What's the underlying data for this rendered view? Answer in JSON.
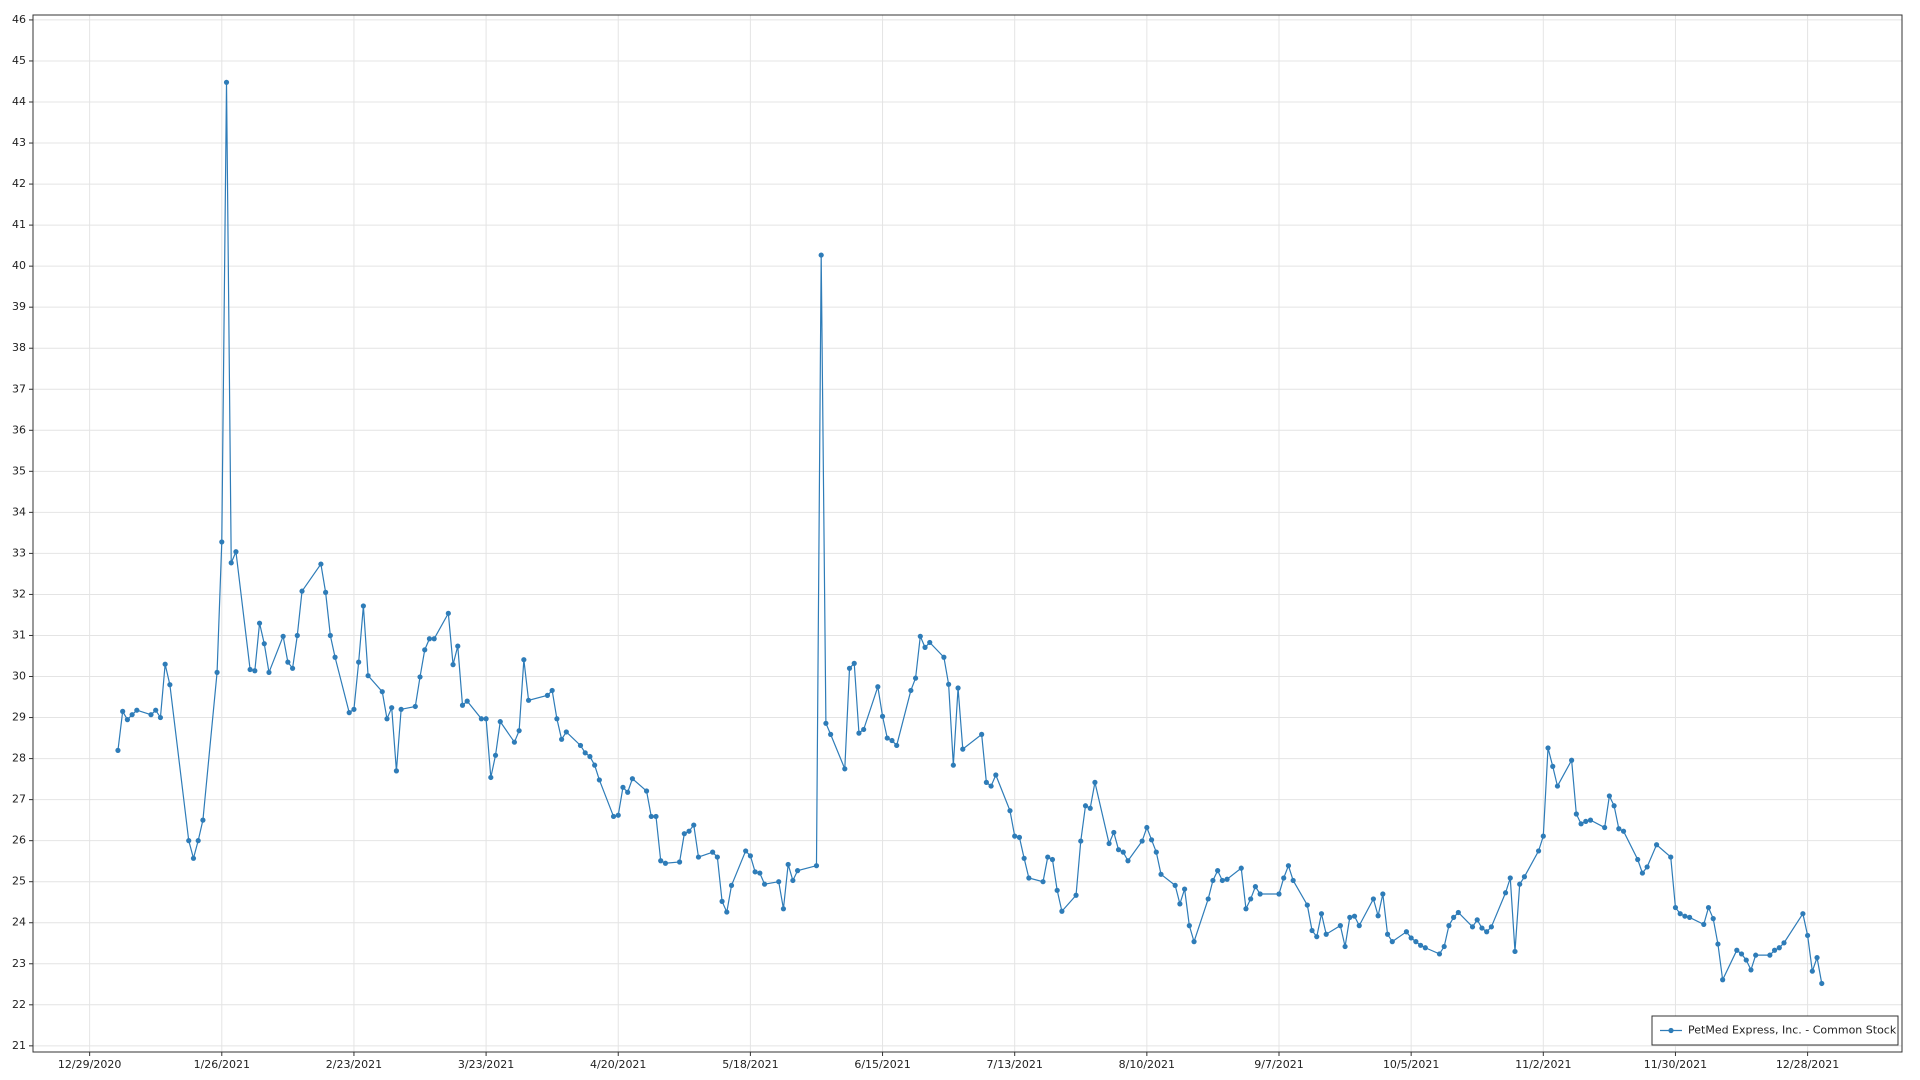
{
  "chart_data": {
    "type": "line",
    "x": [
      "1/4/2021",
      "1/5/2021",
      "1/6/2021",
      "1/7/2021",
      "1/8/2021",
      "1/11/2021",
      "1/12/2021",
      "1/13/2021",
      "1/14/2021",
      "1/15/2021",
      "1/19/2021",
      "1/20/2021",
      "1/21/2021",
      "1/22/2021",
      "1/25/2021",
      "1/26/2021",
      "1/27/2021",
      "1/28/2021",
      "1/29/2021",
      "2/1/2021",
      "2/2/2021",
      "2/3/2021",
      "2/4/2021",
      "2/5/2021",
      "2/8/2021",
      "2/9/2021",
      "2/10/2021",
      "2/11/2021",
      "2/12/2021",
      "2/16/2021",
      "2/17/2021",
      "2/18/2021",
      "2/19/2021",
      "2/22/2021",
      "2/23/2021",
      "2/24/2021",
      "2/25/2021",
      "2/26/2021",
      "3/1/2021",
      "3/2/2021",
      "3/3/2021",
      "3/4/2021",
      "3/5/2021",
      "3/8/2021",
      "3/9/2021",
      "3/10/2021",
      "3/11/2021",
      "3/12/2021",
      "3/15/2021",
      "3/16/2021",
      "3/17/2021",
      "3/18/2021",
      "3/19/2021",
      "3/22/2021",
      "3/23/2021",
      "3/24/2021",
      "3/25/2021",
      "3/26/2021",
      "3/29/2021",
      "3/30/2021",
      "3/31/2021",
      "4/1/2021",
      "4/5/2021",
      "4/6/2021",
      "4/7/2021",
      "4/8/2021",
      "4/9/2021",
      "4/12/2021",
      "4/13/2021",
      "4/14/2021",
      "4/15/2021",
      "4/16/2021",
      "4/19/2021",
      "4/20/2021",
      "4/21/2021",
      "4/22/2021",
      "4/23/2021",
      "4/26/2021",
      "4/27/2021",
      "4/28/2021",
      "4/29/2021",
      "4/30/2021",
      "5/3/2021",
      "5/4/2021",
      "5/5/2021",
      "5/6/2021",
      "5/7/2021",
      "5/10/2021",
      "5/11/2021",
      "5/12/2021",
      "5/13/2021",
      "5/14/2021",
      "5/17/2021",
      "5/18/2021",
      "5/19/2021",
      "5/20/2021",
      "5/21/2021",
      "5/24/2021",
      "5/25/2021",
      "5/26/2021",
      "5/27/2021",
      "5/28/2021",
      "6/1/2021",
      "6/2/2021",
      "6/3/2021",
      "6/4/2021",
      "6/7/2021",
      "6/8/2021",
      "6/9/2021",
      "6/10/2021",
      "6/11/2021",
      "6/14/2021",
      "6/15/2021",
      "6/16/2021",
      "6/17/2021",
      "6/18/2021",
      "6/21/2021",
      "6/22/2021",
      "6/23/2021",
      "6/24/2021",
      "6/25/2021",
      "6/28/2021",
      "6/29/2021",
      "6/30/2021",
      "7/1/2021",
      "7/2/2021",
      "7/6/2021",
      "7/7/2021",
      "7/8/2021",
      "7/9/2021",
      "7/12/2021",
      "7/13/2021",
      "7/14/2021",
      "7/15/2021",
      "7/16/2021",
      "7/19/2021",
      "7/20/2021",
      "7/21/2021",
      "7/22/2021",
      "7/23/2021",
      "7/26/2021",
      "7/27/2021",
      "7/28/2021",
      "7/29/2021",
      "7/30/2021",
      "8/2/2021",
      "8/3/2021",
      "8/4/2021",
      "8/5/2021",
      "8/6/2021",
      "8/9/2021",
      "8/10/2021",
      "8/11/2021",
      "8/12/2021",
      "8/13/2021",
      "8/16/2021",
      "8/17/2021",
      "8/18/2021",
      "8/19/2021",
      "8/20/2021",
      "8/23/2021",
      "8/24/2021",
      "8/25/2021",
      "8/26/2021",
      "8/27/2021",
      "8/30/2021",
      "8/31/2021",
      "9/1/2021",
      "9/2/2021",
      "9/3/2021",
      "9/7/2021",
      "9/8/2021",
      "9/9/2021",
      "9/10/2021",
      "9/13/2021",
      "9/14/2021",
      "9/15/2021",
      "9/16/2021",
      "9/17/2021",
      "9/20/2021",
      "9/21/2021",
      "9/22/2021",
      "9/23/2021",
      "9/24/2021",
      "9/27/2021",
      "9/28/2021",
      "9/29/2021",
      "9/30/2021",
      "10/1/2021",
      "10/4/2021",
      "10/5/2021",
      "10/6/2021",
      "10/7/2021",
      "10/8/2021",
      "10/11/2021",
      "10/12/2021",
      "10/13/2021",
      "10/14/2021",
      "10/15/2021",
      "10/18/2021",
      "10/19/2021",
      "10/20/2021",
      "10/21/2021",
      "10/22/2021",
      "10/25/2021",
      "10/26/2021",
      "10/27/2021",
      "10/28/2021",
      "10/29/2021",
      "11/1/2021",
      "11/2/2021",
      "11/3/2021",
      "11/4/2021",
      "11/5/2021",
      "11/8/2021",
      "11/9/2021",
      "11/10/2021",
      "11/11/2021",
      "11/12/2021",
      "11/15/2021",
      "11/16/2021",
      "11/17/2021",
      "11/18/2021",
      "11/19/2021",
      "11/22/2021",
      "11/23/2021",
      "11/24/2021",
      "11/26/2021",
      "11/29/2021",
      "11/30/2021",
      "12/1/2021",
      "12/2/2021",
      "12/3/2021",
      "12/6/2021",
      "12/7/2021",
      "12/8/2021",
      "12/9/2021",
      "12/10/2021",
      "12/13/2021",
      "12/14/2021",
      "12/15/2021",
      "12/16/2021",
      "12/17/2021",
      "12/20/2021",
      "12/21/2021",
      "12/22/2021",
      "12/23/2021",
      "12/27/2021",
      "12/28/2021",
      "12/29/2021",
      "12/30/2021",
      "12/31/2021"
    ],
    "series": [
      {
        "name": "PetMed Express, Inc. - Common Stock",
        "color": "#2e7cb8",
        "values": [
          28.2,
          29.15,
          28.95,
          29.07,
          29.18,
          29.07,
          29.18,
          29.0,
          30.3,
          29.8,
          26.0,
          25.57,
          26.0,
          26.5,
          30.1,
          33.28,
          44.48,
          32.77,
          33.04,
          30.17,
          30.14,
          31.3,
          30.8,
          30.1,
          30.98,
          30.35,
          30.2,
          31.0,
          32.08,
          32.74,
          32.05,
          31.0,
          30.47,
          29.12,
          29.2,
          30.35,
          31.72,
          30.02,
          29.63,
          28.97,
          29.24,
          27.7,
          29.2,
          29.27,
          29.99,
          30.65,
          30.92,
          30.92,
          31.54,
          30.29,
          30.74,
          29.3,
          29.4,
          28.97,
          28.97,
          27.54,
          28.08,
          28.9,
          28.4,
          28.68,
          30.41,
          29.42,
          29.54,
          29.66,
          28.97,
          28.47,
          28.65,
          28.32,
          28.14,
          28.05,
          27.84,
          27.48,
          26.59,
          26.62,
          27.3,
          27.18,
          27.51,
          27.21,
          26.59,
          26.59,
          25.51,
          25.45,
          25.48,
          26.17,
          26.23,
          26.38,
          25.6,
          25.72,
          25.6,
          24.52,
          24.26,
          24.91,
          25.75,
          25.63,
          25.24,
          25.21,
          24.94,
          25.0,
          24.34,
          25.42,
          25.03,
          25.27,
          25.39,
          40.27,
          28.86,
          28.59,
          27.75,
          30.2,
          30.32,
          28.62,
          28.71,
          29.75,
          29.03,
          28.5,
          28.44,
          28.32,
          29.66,
          29.96,
          30.98,
          30.71,
          30.83,
          30.47,
          29.81,
          27.84,
          29.72,
          28.23,
          28.59,
          27.42,
          27.33,
          27.6,
          26.73,
          26.11,
          26.08,
          25.57,
          25.09,
          25.0,
          25.6,
          25.54,
          24.79,
          24.28,
          24.67,
          25.99,
          26.85,
          26.79,
          27.42,
          25.93,
          26.2,
          25.78,
          25.72,
          25.51,
          25.99,
          26.32,
          26.02,
          25.72,
          25.18,
          24.91,
          24.46,
          24.82,
          23.93,
          23.54,
          24.58,
          25.03,
          25.27,
          25.03,
          25.06,
          25.33,
          24.34,
          24.58,
          24.88,
          24.7,
          24.7,
          25.09,
          25.39,
          25.03,
          24.43,
          23.81,
          23.66,
          24.22,
          23.72,
          23.93,
          23.42,
          24.13,
          24.16,
          23.93,
          24.58,
          24.17,
          24.7,
          23.72,
          23.54,
          23.78,
          23.63,
          23.54,
          23.45,
          23.39,
          23.24,
          23.42,
          23.93,
          24.13,
          24.25,
          23.9,
          24.07,
          23.87,
          23.78,
          23.9,
          24.73,
          25.09,
          23.3,
          24.94,
          25.12,
          25.75,
          26.11,
          28.26,
          27.81,
          27.33,
          27.96,
          26.65,
          26.41,
          26.47,
          26.5,
          26.32,
          27.09,
          26.85,
          26.29,
          26.23,
          25.54,
          25.21,
          25.36,
          25.9,
          25.6,
          24.37,
          24.22,
          24.16,
          24.13,
          23.96,
          24.37,
          24.1,
          23.48,
          22.61,
          23.33,
          23.24,
          23.09,
          22.85,
          23.21,
          23.21,
          23.33,
          23.39,
          23.51,
          24.22,
          23.69,
          22.82,
          23.15,
          22.52
        ]
      }
    ],
    "xlim": [
      "12/17/2020",
      "1/17/2022"
    ],
    "xticks": [
      "12/29/2020",
      "1/26/2021",
      "2/23/2021",
      "3/23/2021",
      "4/20/2021",
      "5/18/2021",
      "6/15/2021",
      "7/13/2021",
      "8/10/2021",
      "9/7/2021",
      "10/5/2021",
      "11/2/2021",
      "11/30/2021",
      "12/28/2021"
    ],
    "ylim": [
      20.85,
      46.12
    ],
    "yticks": [
      21,
      22,
      23,
      24,
      25,
      26,
      27,
      28,
      29,
      30,
      31,
      32,
      33,
      34,
      35,
      36,
      37,
      38,
      39,
      40,
      41,
      42,
      43,
      44,
      45,
      46
    ],
    "grid": true,
    "legend": "lower right"
  }
}
